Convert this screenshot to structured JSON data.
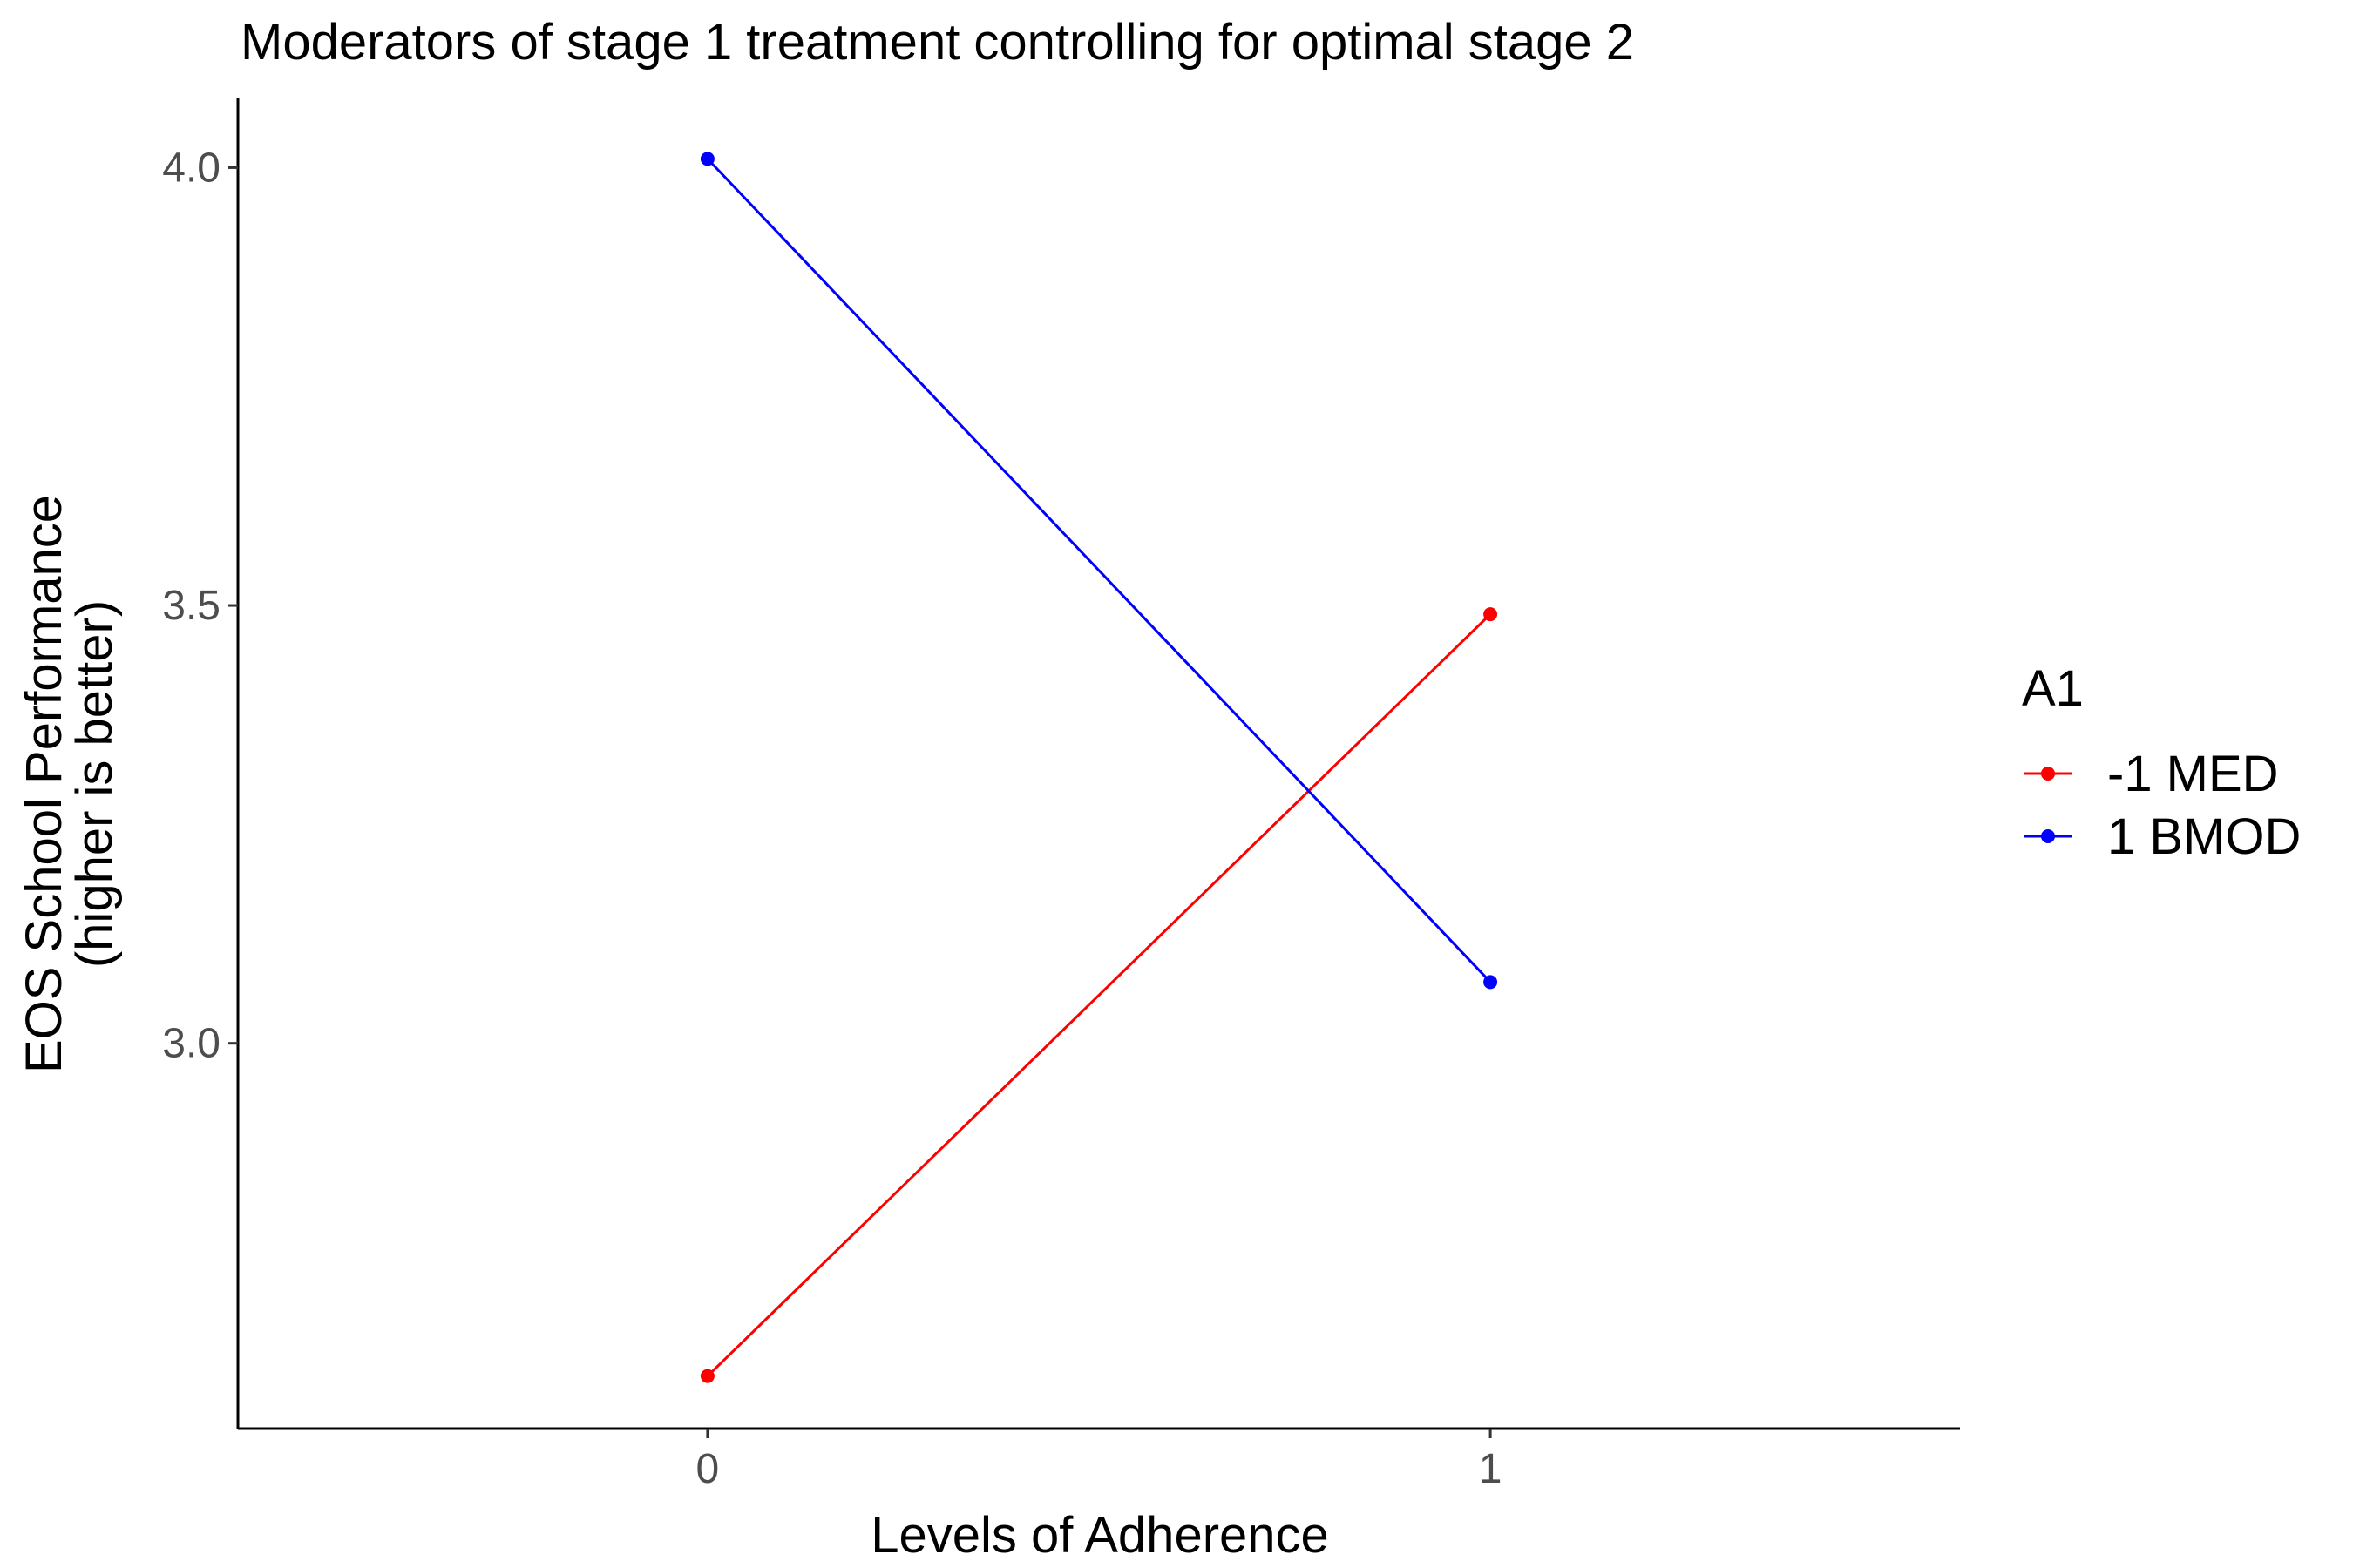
{
  "chart_data": {
    "type": "line",
    "title": "Moderators of stage 1 treatment controlling for optimal stage 2",
    "xlabel": "Levels of Adherence",
    "ylabel_lines": [
      "EOS School Performance",
      "(higher is better)"
    ],
    "x": [
      0,
      1
    ],
    "x_tick_labels": [
      "0",
      "1"
    ],
    "xlim": [
      -0.6,
      1.6
    ],
    "ylim": [
      2.56,
      4.08
    ],
    "y_ticks": [
      3.0,
      3.5,
      4.0
    ],
    "y_tick_labels": [
      "3.0",
      "3.5",
      "4.0"
    ],
    "grid": false,
    "legend": {
      "title": "A1",
      "placement": "right"
    },
    "series": [
      {
        "name": "-1 MED",
        "color": "#ff0000",
        "values": [
          2.62,
          3.49
        ]
      },
      {
        "name": "1 BMOD",
        "color": "#0000ff",
        "values": [
          4.01,
          3.07
        ]
      }
    ]
  }
}
